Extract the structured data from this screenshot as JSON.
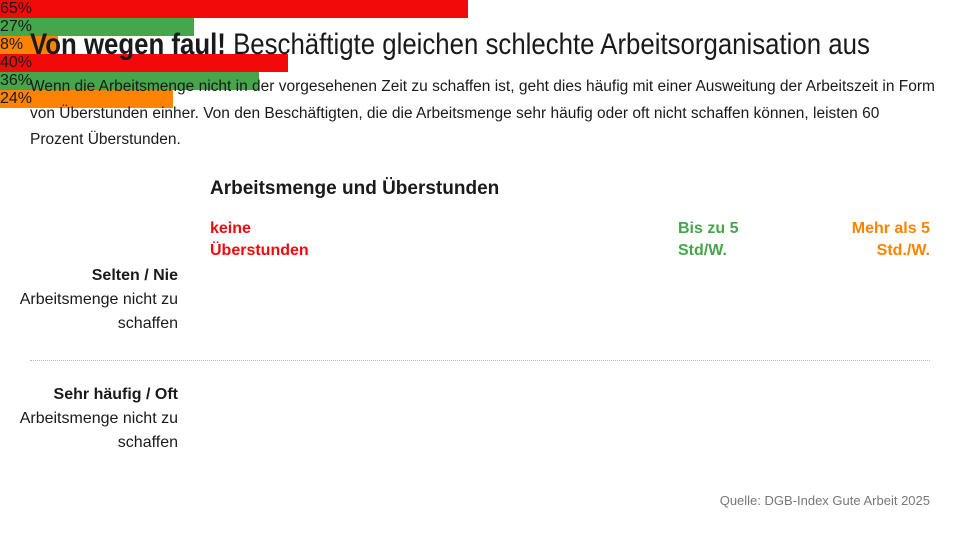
{
  "chart_data": {
    "type": "stacked_bar_horizontal",
    "title": "Von wegen faul!",
    "subtitle": "Beschäftigte gleichen schlechte Arbeitsorganisation aus",
    "description": "Wenn die Arbeitsmenge nicht in der vorgesehenen Zeit zu schaffen ist, geht dies häufig mit einer Ausweitung der Arbeitszeit in Form von Überstunden einher. Von den Beschäftigten, die die Arbeitsmenge sehr häufig oder oft nicht schaffen können, leisten 60 Prozent Überstunden.",
    "chart_title": "Arbeitsmenge und Überstunden",
    "categories": [
      "Selten / Nie",
      "Sehr häufig / Oft"
    ],
    "category_sublabels": [
      "Arbeitsmenge nicht zu schaffen",
      "Arbeitsmenge nicht zu schaffen"
    ],
    "value_unit": "%",
    "xlim": [
      0,
      100
    ],
    "series": [
      {
        "name": "keine Überstunden",
        "color": "#f20a0a",
        "values": [
          65,
          40
        ]
      },
      {
        "name": "Bis zu 5 Std/W.",
        "color": "#45a64b",
        "values": [
          27,
          36
        ]
      },
      {
        "name": "Mehr als 5 Std./W.",
        "color": "#ff8200",
        "values": [
          8,
          24
        ]
      }
    ],
    "source": "Quelle: DGB-Index Gute Arbeit 2025"
  }
}
